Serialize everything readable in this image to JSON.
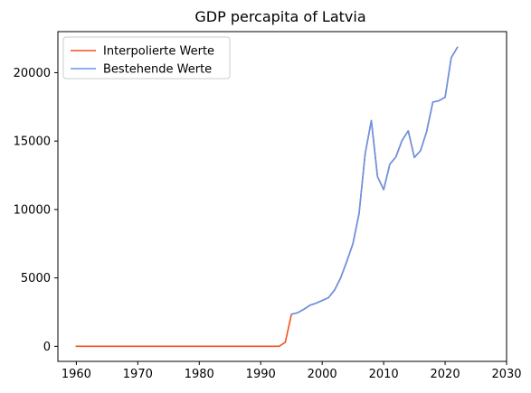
{
  "chart_data": {
    "type": "line",
    "title": "GDP percapita of Latvia",
    "xlabel": "",
    "ylabel": "",
    "xlim": [
      1957,
      2030
    ],
    "ylim": [
      -1100,
      23000
    ],
    "xticks": [
      1960,
      1970,
      1980,
      1990,
      2000,
      2010,
      2020,
      2030
    ],
    "yticks": [
      0,
      5000,
      10000,
      15000,
      20000
    ],
    "legend_position": "top-left",
    "grid": false,
    "series": [
      {
        "name": "Interpolierte Werte",
        "color": "#f4511e",
        "points": [
          [
            1960,
            0
          ],
          [
            1965,
            0
          ],
          [
            1970,
            0
          ],
          [
            1975,
            0
          ],
          [
            1980,
            0
          ],
          [
            1985,
            0
          ],
          [
            1990,
            0
          ],
          [
            1993,
            0
          ],
          [
            1994,
            300
          ],
          [
            1995,
            2350
          ],
          [
            1996,
            2450
          ],
          [
            1997,
            2700
          ],
          [
            1998,
            3000
          ],
          [
            1999,
            3150
          ],
          [
            2000,
            3350
          ],
          [
            2001,
            3550
          ],
          [
            2002,
            4100
          ],
          [
            2003,
            5000
          ],
          [
            2004,
            6200
          ],
          [
            2005,
            7500
          ],
          [
            2006,
            9700
          ],
          [
            2007,
            14100
          ],
          [
            2008,
            16500
          ],
          [
            2009,
            12400
          ],
          [
            2010,
            11450
          ],
          [
            2011,
            13300
          ],
          [
            2012,
            13850
          ],
          [
            2013,
            15050
          ],
          [
            2014,
            15750
          ],
          [
            2015,
            13800
          ],
          [
            2016,
            14300
          ],
          [
            2017,
            15700
          ],
          [
            2018,
            17850
          ],
          [
            2019,
            17950
          ],
          [
            2020,
            18200
          ],
          [
            2021,
            21100
          ],
          [
            2022,
            21850
          ]
        ]
      },
      {
        "name": "Bestehende Werte",
        "color": "#6495ed",
        "points": [
          [
            1995,
            2350
          ],
          [
            1996,
            2450
          ],
          [
            1997,
            2700
          ],
          [
            1998,
            3000
          ],
          [
            1999,
            3150
          ],
          [
            2000,
            3350
          ],
          [
            2001,
            3550
          ],
          [
            2002,
            4100
          ],
          [
            2003,
            5000
          ],
          [
            2004,
            6200
          ],
          [
            2005,
            7500
          ],
          [
            2006,
            9700
          ],
          [
            2007,
            14100
          ],
          [
            2008,
            16500
          ],
          [
            2009,
            12400
          ],
          [
            2010,
            11450
          ],
          [
            2011,
            13300
          ],
          [
            2012,
            13850
          ],
          [
            2013,
            15050
          ],
          [
            2014,
            15750
          ],
          [
            2015,
            13800
          ],
          [
            2016,
            14300
          ],
          [
            2017,
            15700
          ],
          [
            2018,
            17850
          ],
          [
            2019,
            17950
          ],
          [
            2020,
            18200
          ],
          [
            2021,
            21100
          ],
          [
            2022,
            21850
          ]
        ]
      }
    ]
  }
}
